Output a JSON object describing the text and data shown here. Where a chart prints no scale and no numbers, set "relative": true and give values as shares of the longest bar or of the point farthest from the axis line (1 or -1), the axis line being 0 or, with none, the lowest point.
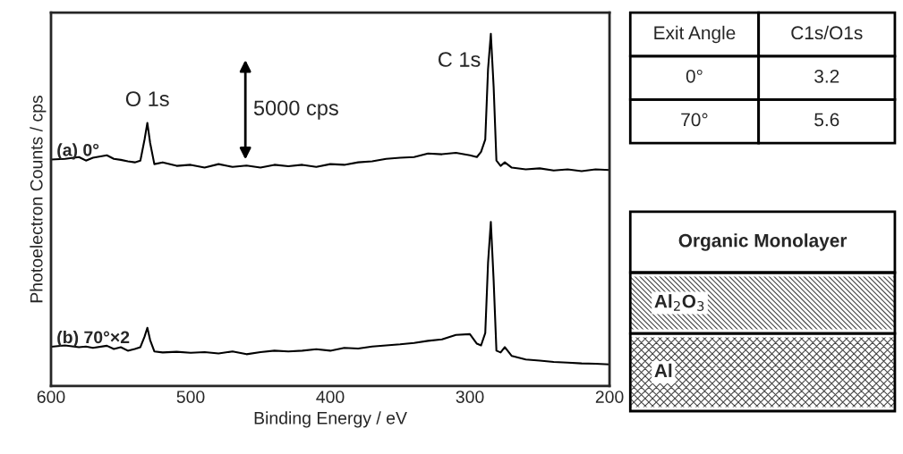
{
  "chart_data": [
    {
      "type": "line",
      "relative": true,
      "xlabel": "Binding Energy / eV",
      "ylabel": "Photoelectron Counts / cps",
      "xlim": [
        600,
        200
      ],
      "xticks": [
        600,
        500,
        400,
        300,
        200
      ],
      "tick_labels": "x",
      "grid": false,
      "legend": false,
      "marker": "none",
      "line_style": "solid",
      "annotations": [
        {
          "text": "O 1s",
          "x": 531,
          "y": 0.747
        },
        {
          "text": "C 1s",
          "x": 285,
          "y": 1.0
        },
        "5000 cps"
      ],
      "series": [
        {
          "name": "(a) 0°",
          "color": "#000000",
          "x": [
            600,
            590,
            580,
            575,
            570,
            560,
            555,
            550,
            545,
            540,
            536,
            533,
            531,
            529,
            526,
            520,
            510,
            500,
            490,
            480,
            470,
            460,
            450,
            440,
            430,
            420,
            410,
            400,
            390,
            380,
            370,
            360,
            350,
            340,
            330,
            320,
            310,
            300,
            295,
            292,
            289,
            287,
            285,
            283,
            281,
            278,
            275,
            270,
            260,
            250,
            240,
            230,
            220,
            210,
            200
          ],
          "values": [
            0.643,
            0.645,
            0.65,
            0.64,
            0.648,
            0.655,
            0.645,
            0.642,
            0.638,
            0.635,
            0.64,
            0.7,
            0.747,
            0.69,
            0.63,
            0.635,
            0.625,
            0.628,
            0.62,
            0.63,
            0.622,
            0.626,
            0.62,
            0.628,
            0.624,
            0.628,
            0.622,
            0.63,
            0.628,
            0.635,
            0.638,
            0.645,
            0.648,
            0.65,
            0.66,
            0.658,
            0.662,
            0.655,
            0.65,
            0.665,
            0.7,
            0.9,
            1.0,
            0.85,
            0.64,
            0.625,
            0.635,
            0.62,
            0.615,
            0.618,
            0.612,
            0.615,
            0.61,
            0.615,
            0.613
          ]
        },
        {
          "name": "(b) 70°×2",
          "color": "#000000",
          "x": [
            600,
            590,
            580,
            575,
            570,
            560,
            555,
            550,
            545,
            540,
            536,
            533,
            531,
            529,
            526,
            520,
            510,
            500,
            490,
            480,
            470,
            460,
            450,
            440,
            430,
            420,
            410,
            400,
            390,
            380,
            370,
            360,
            350,
            340,
            330,
            320,
            310,
            300,
            295,
            292,
            289,
            287,
            285,
            283,
            281,
            278,
            275,
            270,
            260,
            250,
            240,
            230,
            220,
            210,
            200
          ],
          "values": [
            0.111,
            0.115,
            0.11,
            0.112,
            0.108,
            0.114,
            0.105,
            0.11,
            0.1,
            0.105,
            0.11,
            0.14,
            0.165,
            0.13,
            0.098,
            0.095,
            0.097,
            0.094,
            0.096,
            0.092,
            0.098,
            0.09,
            0.096,
            0.1,
            0.098,
            0.1,
            0.104,
            0.1,
            0.108,
            0.106,
            0.112,
            0.115,
            0.118,
            0.122,
            0.128,
            0.132,
            0.145,
            0.147,
            0.12,
            0.115,
            0.15,
            0.35,
            0.466,
            0.3,
            0.1,
            0.095,
            0.11,
            0.085,
            0.075,
            0.072,
            0.068,
            0.066,
            0.064,
            0.063,
            0.061
          ]
        }
      ]
    },
    {
      "type": "other",
      "annotations": [
        "Exit Angle",
        "C1s/O1s",
        "0°",
        "3.2",
        "70°",
        "5.6"
      ]
    },
    {
      "type": "other",
      "annotations": [
        "Organic Monolayer",
        "Al$_{2}$O$_{3}$",
        "Al"
      ]
    }
  ]
}
